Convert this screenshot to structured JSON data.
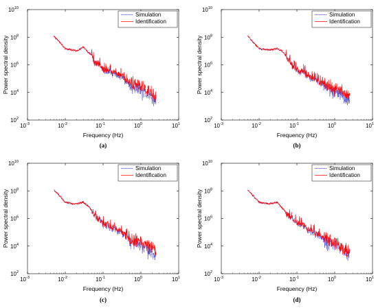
{
  "chart_data": [
    {
      "type": "line",
      "caption": "(a)",
      "xlabel": "Frequency (Hz)",
      "ylabel": "Power spectral density",
      "xscale": "log",
      "yscale": "log",
      "xlim": [
        0.001,
        10
      ],
      "ylim": [
        100,
        10000000000
      ],
      "xticks": [
        {
          "base": "10",
          "exp": "-3"
        },
        {
          "base": "10",
          "exp": "-2"
        },
        {
          "base": "10",
          "exp": "-1"
        },
        {
          "base": "10",
          "exp": "0"
        },
        {
          "base": "10",
          "exp": "1"
        }
      ],
      "yticks": [
        {
          "base": "10",
          "exp": "2"
        },
        {
          "base": "10",
          "exp": "4"
        },
        {
          "base": "10",
          "exp": "6"
        },
        {
          "base": "10",
          "exp": "8"
        },
        {
          "base": "10",
          "exp": "10"
        }
      ],
      "grid": false,
      "legend_position": "top-right",
      "series": [
        {
          "name": "Simulation",
          "color": "#2f2fd0",
          "style": "dotted",
          "x": [
            0.005,
            0.01,
            0.015,
            0.02,
            0.03,
            0.04,
            0.05,
            0.06,
            0.08,
            0.1,
            0.15,
            0.2,
            0.3,
            0.4,
            0.5,
            0.7,
            1.0,
            1.3,
            1.6,
            2.0,
            2.5
          ],
          "y": [
            120000000,
            15000000,
            12000000,
            10000000,
            20000000,
            8000000,
            5000000,
            1500000,
            1000000,
            400000,
            300000,
            200000,
            150000,
            60000,
            40000,
            30000,
            15000,
            10000,
            8000,
            5000,
            3000
          ]
        },
        {
          "name": "Identification",
          "color": "#ff0000",
          "style": "solid",
          "x": [
            0.005,
            0.01,
            0.015,
            0.02,
            0.03,
            0.04,
            0.05,
            0.06,
            0.08,
            0.1,
            0.15,
            0.2,
            0.3,
            0.4,
            0.5,
            0.7,
            1.0,
            1.3,
            1.6,
            2.0,
            2.5
          ],
          "y": [
            120000000,
            15000000,
            12000000,
            10000000,
            20000000,
            8000000,
            5000000,
            1500000,
            1000000,
            500000,
            350000,
            250000,
            180000,
            80000,
            60000,
            50000,
            30000,
            20000,
            15000,
            10000,
            6000
          ]
        }
      ]
    },
    {
      "type": "line",
      "caption": "(b)",
      "xlabel": "Frequency (Hz)",
      "ylabel": "Power spectral density",
      "xscale": "log",
      "yscale": "log",
      "xlim": [
        0.001,
        10
      ],
      "ylim": [
        100,
        10000000000
      ],
      "xticks": [
        {
          "base": "10",
          "exp": "-3"
        },
        {
          "base": "10",
          "exp": "-2"
        },
        {
          "base": "10",
          "exp": "-1"
        },
        {
          "base": "10",
          "exp": "0"
        },
        {
          "base": "10",
          "exp": "1"
        }
      ],
      "yticks": [
        {
          "base": "10",
          "exp": "2"
        },
        {
          "base": "10",
          "exp": "4"
        },
        {
          "base": "10",
          "exp": "6"
        },
        {
          "base": "10",
          "exp": "8"
        },
        {
          "base": "10",
          "exp": "10"
        }
      ],
      "grid": false,
      "legend_position": "top-right",
      "series": [
        {
          "name": "Simulation",
          "color": "#2f2fd0",
          "style": "dotted",
          "x": [
            0.005,
            0.01,
            0.015,
            0.02,
            0.03,
            0.04,
            0.05,
            0.06,
            0.08,
            0.1,
            0.15,
            0.2,
            0.3,
            0.4,
            0.5,
            0.7,
            1.0,
            1.3,
            1.6,
            2.0,
            2.5
          ],
          "y": [
            120000000,
            15000000,
            12000000,
            12000000,
            15000000,
            10000000,
            5000000,
            2000000,
            800000,
            400000,
            300000,
            150000,
            80000,
            50000,
            40000,
            25000,
            15000,
            10000,
            8000,
            5000,
            3000
          ]
        },
        {
          "name": "Identification",
          "color": "#ff0000",
          "style": "solid",
          "x": [
            0.005,
            0.01,
            0.015,
            0.02,
            0.03,
            0.04,
            0.05,
            0.06,
            0.08,
            0.1,
            0.15,
            0.2,
            0.3,
            0.4,
            0.5,
            0.7,
            1.0,
            1.3,
            1.6,
            2.0,
            2.5
          ],
          "y": [
            120000000,
            15000000,
            12000000,
            12000000,
            15000000,
            10000000,
            5000000,
            2000000,
            800000,
            450000,
            320000,
            180000,
            100000,
            60000,
            50000,
            35000,
            20000,
            15000,
            12000,
            8000,
            5000
          ]
        }
      ]
    },
    {
      "type": "line",
      "caption": "(c)",
      "xlabel": "Frequency (Hz)",
      "ylabel": "Power spectral density",
      "xscale": "log",
      "yscale": "log",
      "xlim": [
        0.001,
        10
      ],
      "ylim": [
        100,
        10000000000
      ],
      "xticks": [
        {
          "base": "10",
          "exp": "-3"
        },
        {
          "base": "10",
          "exp": "-2"
        },
        {
          "base": "10",
          "exp": "-1"
        },
        {
          "base": "10",
          "exp": "0"
        },
        {
          "base": "10",
          "exp": "1"
        }
      ],
      "yticks": [
        {
          "base": "10",
          "exp": "2"
        },
        {
          "base": "10",
          "exp": "4"
        },
        {
          "base": "10",
          "exp": "6"
        },
        {
          "base": "10",
          "exp": "8"
        },
        {
          "base": "10",
          "exp": "10"
        }
      ],
      "grid": false,
      "legend_position": "top-right",
      "series": [
        {
          "name": "Simulation",
          "color": "#2f2fd0",
          "style": "dotted",
          "x": [
            0.005,
            0.01,
            0.015,
            0.02,
            0.03,
            0.04,
            0.05,
            0.06,
            0.08,
            0.1,
            0.15,
            0.2,
            0.3,
            0.4,
            0.5,
            0.7,
            1.0,
            1.3,
            1.6,
            2.0,
            2.5
          ],
          "y": [
            120000000,
            15000000,
            12000000,
            12000000,
            15000000,
            8000000,
            4000000,
            1500000,
            800000,
            400000,
            250000,
            150000,
            100000,
            50000,
            30000,
            20000,
            15000,
            8000,
            5000,
            3000,
            2000
          ]
        },
        {
          "name": "Identification",
          "color": "#ff0000",
          "style": "solid",
          "x": [
            0.005,
            0.01,
            0.015,
            0.02,
            0.03,
            0.04,
            0.05,
            0.06,
            0.08,
            0.1,
            0.15,
            0.2,
            0.3,
            0.4,
            0.5,
            0.7,
            1.0,
            1.3,
            1.6,
            2.0,
            2.5
          ],
          "y": [
            120000000,
            15000000,
            12000000,
            12000000,
            15000000,
            8000000,
            4000000,
            1500000,
            800000,
            450000,
            300000,
            200000,
            120000,
            60000,
            40000,
            30000,
            20000,
            15000,
            12000,
            8000,
            5000
          ]
        }
      ]
    },
    {
      "type": "line",
      "caption": "(d)",
      "xlabel": "Frequency (Hz)",
      "ylabel": "Power spectral density",
      "xscale": "log",
      "yscale": "log",
      "xlim": [
        0.001,
        10
      ],
      "ylim": [
        100,
        10000000000
      ],
      "xticks": [
        {
          "base": "10",
          "exp": "-3"
        },
        {
          "base": "10",
          "exp": "-2"
        },
        {
          "base": "10",
          "exp": "-1"
        },
        {
          "base": "10",
          "exp": "0"
        },
        {
          "base": "10",
          "exp": "1"
        }
      ],
      "yticks": [
        {
          "base": "10",
          "exp": "2"
        },
        {
          "base": "10",
          "exp": "4"
        },
        {
          "base": "10",
          "exp": "6"
        },
        {
          "base": "10",
          "exp": "8"
        },
        {
          "base": "10",
          "exp": "10"
        }
      ],
      "grid": false,
      "legend_position": "top-right",
      "series": [
        {
          "name": "Simulation",
          "color": "#2f2fd0",
          "style": "dotted",
          "x": [
            0.005,
            0.01,
            0.015,
            0.02,
            0.03,
            0.04,
            0.05,
            0.06,
            0.08,
            0.1,
            0.15,
            0.2,
            0.3,
            0.4,
            0.5,
            0.7,
            1.0,
            1.3,
            1.6,
            2.0,
            2.5
          ],
          "y": [
            120000000,
            15000000,
            12000000,
            12000000,
            15000000,
            6000000,
            3000000,
            1500000,
            800000,
            500000,
            300000,
            150000,
            80000,
            50000,
            30000,
            20000,
            15000,
            10000,
            7000,
            4000,
            3000
          ]
        },
        {
          "name": "Identification",
          "color": "#ff0000",
          "style": "solid",
          "x": [
            0.005,
            0.01,
            0.015,
            0.02,
            0.03,
            0.04,
            0.05,
            0.06,
            0.08,
            0.1,
            0.15,
            0.2,
            0.3,
            0.4,
            0.5,
            0.7,
            1.0,
            1.3,
            1.6,
            2.0,
            2.5
          ],
          "y": [
            120000000,
            15000000,
            12000000,
            12000000,
            15000000,
            6000000,
            3000000,
            1500000,
            800000,
            550000,
            320000,
            180000,
            100000,
            60000,
            40000,
            30000,
            20000,
            15000,
            10000,
            7000,
            5000
          ]
        }
      ]
    }
  ]
}
